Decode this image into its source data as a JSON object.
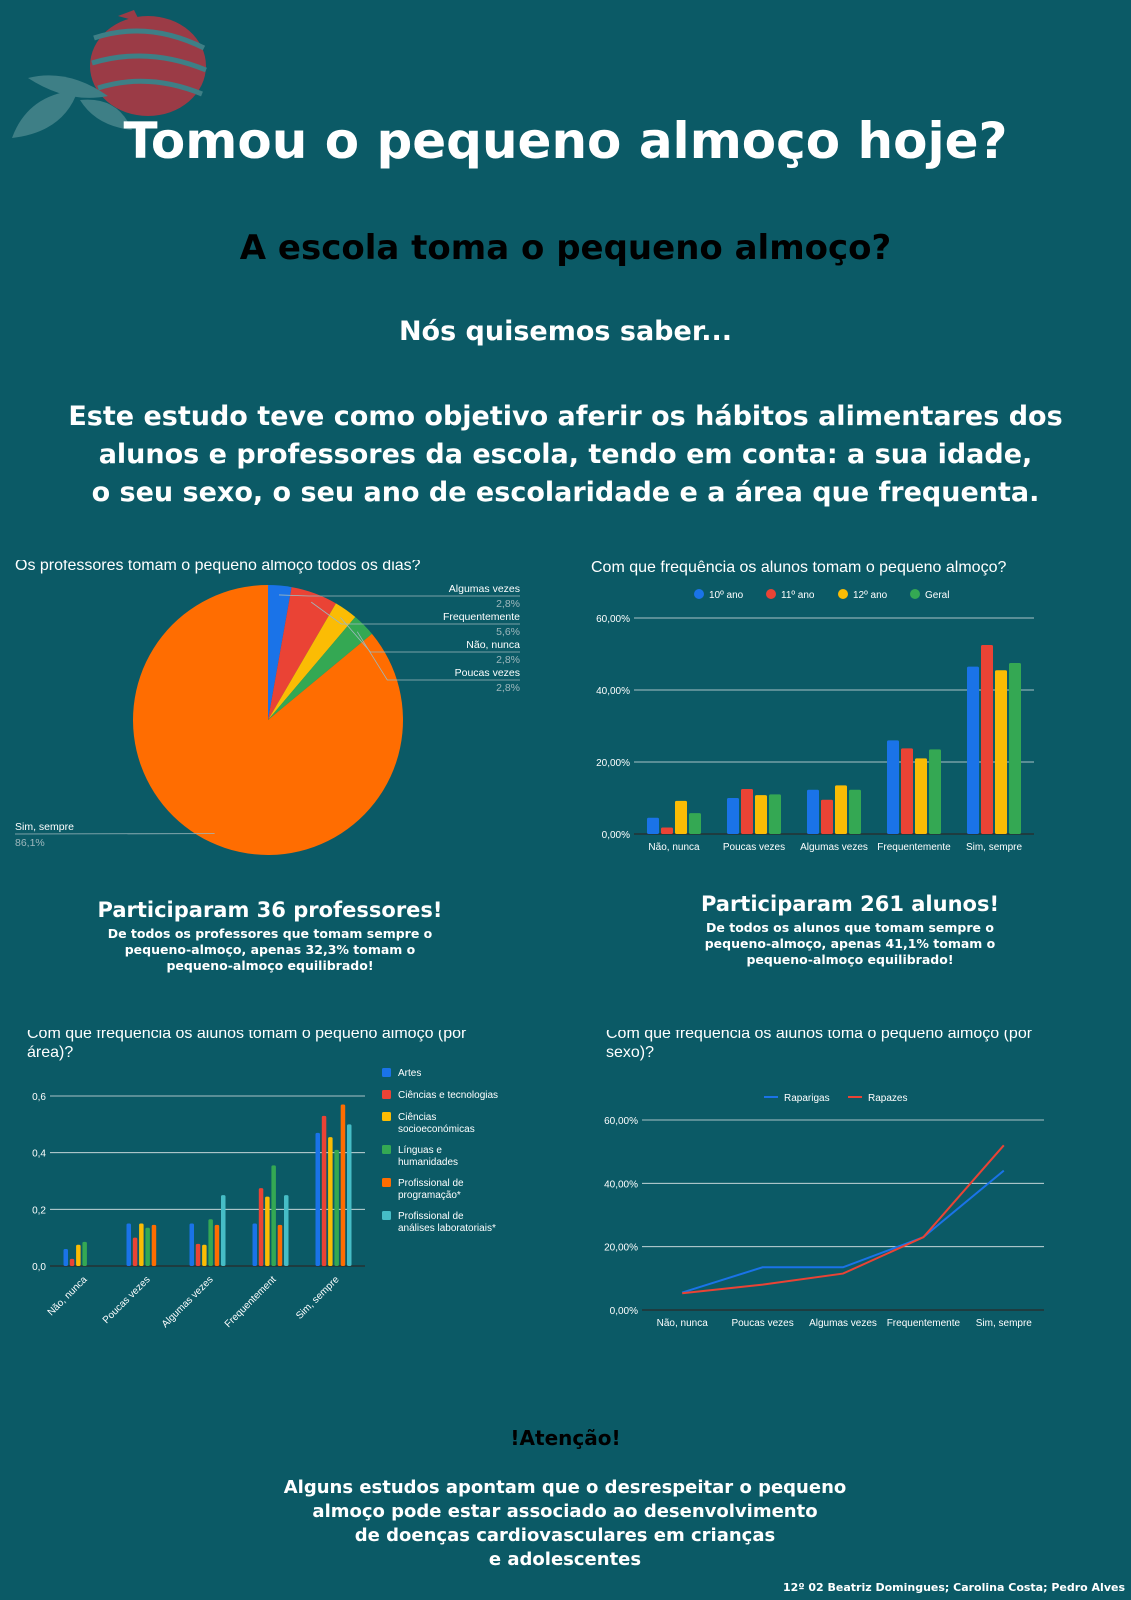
{
  "header": {
    "title": "Tomou o pequeno almoço hoje?",
    "subtitle": "A escola toma o pequeno almoço?",
    "lead": "Nós quisemos saber...",
    "intro_lines": [
      "Este estudo teve como objetivo aferir os hábitos alimentares dos",
      "alunos e professores da escola, tendo em conta: a sua idade,",
      "o seu sexo, o seu ano de escolaridade e a área que frequenta."
    ]
  },
  "colors": {
    "background": "#0b5a66",
    "blue": "#1a73e8",
    "red": "#ea4335",
    "yellow": "#fbbc04",
    "green": "#34a853",
    "orange": "#ff6d01",
    "cyan": "#46bdc6",
    "logo_red": "#9b3b46",
    "logo_teal": "#3e7f86"
  },
  "teachers_summary": {
    "title": "Participaram 36 professores!",
    "lines": [
      "De todos os professores que tomam sempre o",
      "pequeno-almoço, apenas 32,3% tomam o",
      "pequeno-almoço equilibrado!"
    ]
  },
  "students_summary": {
    "title": "Participaram 261 alunos!",
    "lines": [
      "De todos os alunos que tomam sempre o",
      "pequeno-almoço, apenas 41,1% tomam o",
      "pequeno-almoço equilibrado!"
    ]
  },
  "attention": {
    "title": "!Atenção!",
    "lines": [
      "Alguns estudos apontam que o desrespeitar o pequeno",
      "almoço pode estar associado ao desenvolvimento",
      "de doenças cardiovasculares em crianças",
      "e adolescentes"
    ]
  },
  "authors": "12º 02 Beatriz Domingues; Carolina Costa; Pedro Alves",
  "chart_data": [
    {
      "type": "pie",
      "title": "Os professores tomam o pequeno almoço todos os dias?",
      "slices": [
        {
          "label": "Algumas vezes",
          "pct_text": "2,8%",
          "value": 2.8,
          "color": "#1a73e8"
        },
        {
          "label": "Frequentemente",
          "pct_text": "5,6%",
          "value": 5.6,
          "color": "#ea4335"
        },
        {
          "label": "Não, nunca",
          "pct_text": "2,8%",
          "value": 2.8,
          "color": "#fbbc04"
        },
        {
          "label": "Poucas vezes",
          "pct_text": "2,8%",
          "value": 2.8,
          "color": "#34a853"
        },
        {
          "label": "Sim, sempre",
          "pct_text": "86,1%",
          "value": 86.1,
          "color": "#ff6d01"
        }
      ]
    },
    {
      "type": "bar",
      "title": "Com que frequência os alunos tomam o pequeno almoço?",
      "categories": [
        "Não, nunca",
        "Poucas vezes",
        "Algumas vezes",
        "Frequentemente",
        "Sim, sempre"
      ],
      "series": [
        {
          "name": "10º ano",
          "color": "#1a73e8",
          "values": [
            4.5,
            10,
            12.3,
            26,
            46.5
          ]
        },
        {
          "name": "11º ano",
          "color": "#ea4335",
          "values": [
            1.8,
            12.5,
            9.5,
            23.8,
            52.5
          ]
        },
        {
          "name": "12º ano",
          "color": "#fbbc04",
          "values": [
            9.2,
            10.8,
            13.5,
            21,
            45.5
          ]
        },
        {
          "name": "Geral",
          "color": "#34a853",
          "values": [
            5.8,
            11,
            12.3,
            23.5,
            47.5
          ]
        }
      ],
      "yticks": [
        "0,00%",
        "20,00%",
        "40,00%",
        "60,00%"
      ],
      "ylim": [
        0,
        60
      ],
      "legend": "top"
    },
    {
      "type": "bar",
      "title": "Com que frequência os alunos tomam o pequeno almoço (por área)?",
      "categories": [
        "Não, nunca",
        "Poucas vezes",
        "Algumas vezes",
        "Frequentement",
        "Sim, sempre"
      ],
      "series": [
        {
          "name": "Artes",
          "color": "#1a73e8",
          "values": [
            0.06,
            0.15,
            0.15,
            0.15,
            0.47
          ]
        },
        {
          "name": "Ciências e tecnologias",
          "color": "#ea4335",
          "values": [
            0.025,
            0.1,
            0.078,
            0.275,
            0.53
          ]
        },
        {
          "name": "Ciências socioeconómicas",
          "color": "#fbbc04",
          "values": [
            0.075,
            0.15,
            0.075,
            0.245,
            0.455
          ]
        },
        {
          "name": "Línguas e humanidades",
          "color": "#34a853",
          "values": [
            0.085,
            0.135,
            0.165,
            0.355,
            0.41
          ]
        },
        {
          "name": "Profissional de programação*",
          "color": "#ff6d01",
          "values": [
            0,
            0.145,
            0.145,
            0.145,
            0.57
          ]
        },
        {
          "name": "Profissional de análises laboratoriais*",
          "color": "#46bdc6",
          "values": [
            0,
            0,
            0.25,
            0.25,
            0.5
          ]
        }
      ],
      "legend_lines": [
        [
          "Artes"
        ],
        [
          "Ciências e tecnologias"
        ],
        [
          "Ciências",
          "socioeconómicas"
        ],
        [
          "Línguas e",
          "humanidades"
        ],
        [
          "Profissional de",
          "programação*"
        ],
        [
          "Profissional de",
          "análises laboratoriais*"
        ]
      ],
      "yticks": [
        "0,0",
        "0,2",
        "0,4",
        "0,6"
      ],
      "ylim": [
        0,
        0.6
      ],
      "legend": "right"
    },
    {
      "type": "line",
      "title": "Com que frequência os alunos toma o pequeno almoço (por sexo)?",
      "categories": [
        "Não, nunca",
        "Poucas vezes",
        "Algumas vezes",
        "Frequentemente",
        "Sim, sempre"
      ],
      "series": [
        {
          "name": "Raparigas",
          "color": "#1a73e8",
          "values": [
            5.5,
            13.5,
            13.5,
            23,
            44
          ]
        },
        {
          "name": "Rapazes",
          "color": "#ea4335",
          "values": [
            5.3,
            8,
            11.5,
            23,
            52
          ]
        }
      ],
      "yticks": [
        "0,00%",
        "20,00%",
        "40,00%",
        "60,00%"
      ],
      "ylim": [
        0,
        60
      ],
      "legend": "top"
    }
  ]
}
